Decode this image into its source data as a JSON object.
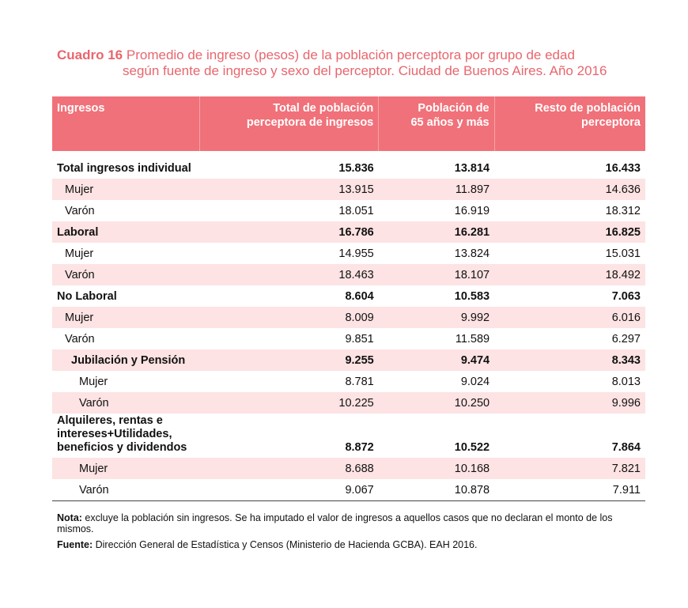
{
  "title": {
    "label": "Cuadro 16",
    "line1": "Promedio de ingreso (pesos) de la población perceptora por grupo de edad",
    "line2": "según fuente de ingreso y sexo del perceptor. Ciudad de Buenos Aires. Año 2016"
  },
  "table": {
    "headers": {
      "c0": "Ingresos",
      "c1_l1": "Total de población",
      "c1_l2": "perceptora de ingresos",
      "c2_l1": "Población de",
      "c2_l2": "65 años y más",
      "c3_l1": "Resto de población",
      "c3_l2": "perceptora"
    },
    "rows": [
      {
        "label": "Total ingresos individual",
        "total": "15.836",
        "p65": "13.814",
        "resto": "16.433"
      },
      {
        "label": "Mujer",
        "total": "13.915",
        "p65": "11.897",
        "resto": "14.636"
      },
      {
        "label": "Varón",
        "total": "18.051",
        "p65": "16.919",
        "resto": "18.312"
      },
      {
        "label": "Laboral",
        "total": "16.786",
        "p65": "16.281",
        "resto": "16.825"
      },
      {
        "label": "Mujer",
        "total": "14.955",
        "p65": "13.824",
        "resto": "15.031"
      },
      {
        "label": "Varón",
        "total": "18.463",
        "p65": "18.107",
        "resto": "18.492"
      },
      {
        "label": "No Laboral",
        "total": "8.604",
        "p65": "10.583",
        "resto": "7.063"
      },
      {
        "label": "Mujer",
        "total": "8.009",
        "p65": "9.992",
        "resto": "6.016"
      },
      {
        "label": "Varón",
        "total": "9.851",
        "p65": "11.589",
        "resto": "6.297"
      },
      {
        "label": "Jubilación y Pensión",
        "total": "9.255",
        "p65": "9.474",
        "resto": "8.343"
      },
      {
        "label": "Mujer",
        "total": "8.781",
        "p65": "9.024",
        "resto": "8.013"
      },
      {
        "label": "Varón",
        "total": "10.225",
        "p65": "10.250",
        "resto": "9.996"
      },
      {
        "label_l1": "Alquileres, rentas e",
        "label_l2": "intereses+Utilidades,",
        "label_l3": "beneficios y dividendos",
        "total": "8.872",
        "p65": "10.522",
        "resto": "7.864"
      },
      {
        "label": "Mujer",
        "total": "8.688",
        "p65": "10.168",
        "resto": "7.821"
      },
      {
        "label": "Varón",
        "total": "9.067",
        "p65": "10.878",
        "resto": "7.911"
      }
    ]
  },
  "notes": {
    "nota_label": "Nota:",
    "nota_text": " excluye la población sin ingresos. Se ha imputado el valor de ingresos a aquellos casos que no declaran el monto de los mismos.",
    "fuente_label": "Fuente:",
    "fuente_text": " Dirección General de Estadística y Censos (Ministerio de Hacienda GCBA). EAH 2016."
  }
}
